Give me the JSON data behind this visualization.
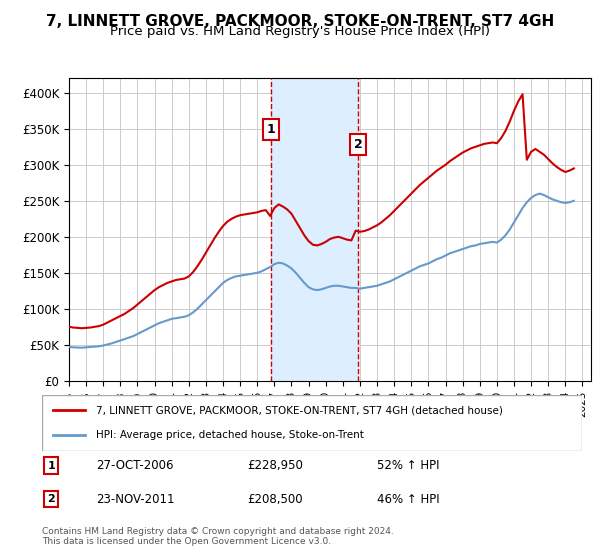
{
  "title": "7, LINNETT GROVE, PACKMOOR, STOKE-ON-TRENT, ST7 4GH",
  "subtitle": "Price paid vs. HM Land Registry's House Price Index (HPI)",
  "title_fontsize": 11,
  "subtitle_fontsize": 9.5,
  "ylabel_ticks": [
    "£0",
    "£50K",
    "£100K",
    "£150K",
    "£200K",
    "£250K",
    "£300K",
    "£350K",
    "£400K"
  ],
  "ytick_values": [
    0,
    50000,
    100000,
    150000,
    200000,
    250000,
    300000,
    350000,
    400000
  ],
  "ylim": [
    0,
    420000
  ],
  "xlim_start": 1995.0,
  "xlim_end": 2025.5,
  "xtick_years": [
    1995,
    1996,
    1997,
    1998,
    1999,
    2000,
    2001,
    2002,
    2003,
    2004,
    2005,
    2006,
    2007,
    2008,
    2009,
    2010,
    2011,
    2012,
    2013,
    2014,
    2015,
    2016,
    2017,
    2018,
    2019,
    2020,
    2021,
    2022,
    2023,
    2024,
    2025
  ],
  "purchase1_x": 2006.82,
  "purchase1_y": 228950,
  "purchase1_label": "1",
  "purchase2_x": 2011.9,
  "purchase2_y": 208500,
  "purchase2_label": "2",
  "shade_x1": 2006.82,
  "shade_x2": 2011.9,
  "red_line_color": "#cc0000",
  "blue_line_color": "#6699cc",
  "shade_color": "#ddeeff",
  "vline_color": "#cc0000",
  "grid_color": "#cccccc",
  "legend1_label": "7, LINNETT GROVE, PACKMOOR, STOKE-ON-TRENT, ST7 4GH (detached house)",
  "legend2_label": "HPI: Average price, detached house, Stoke-on-Trent",
  "transaction1_date": "27-OCT-2006",
  "transaction1_price": "£228,950",
  "transaction1_hpi": "52% ↑ HPI",
  "transaction2_date": "23-NOV-2011",
  "transaction2_price": "£208,500",
  "transaction2_hpi": "46% ↑ HPI",
  "footer": "Contains HM Land Registry data © Crown copyright and database right 2024.\nThis data is licensed under the Open Government Licence v3.0.",
  "hpi_data_x": [
    1995.0,
    1995.25,
    1995.5,
    1995.75,
    1996.0,
    1996.25,
    1996.5,
    1996.75,
    1997.0,
    1997.25,
    1997.5,
    1997.75,
    1998.0,
    1998.25,
    1998.5,
    1998.75,
    1999.0,
    1999.25,
    1999.5,
    1999.75,
    2000.0,
    2000.25,
    2000.5,
    2000.75,
    2001.0,
    2001.25,
    2001.5,
    2001.75,
    2002.0,
    2002.25,
    2002.5,
    2002.75,
    2003.0,
    2003.25,
    2003.5,
    2003.75,
    2004.0,
    2004.25,
    2004.5,
    2004.75,
    2005.0,
    2005.25,
    2005.5,
    2005.75,
    2006.0,
    2006.25,
    2006.5,
    2006.75,
    2007.0,
    2007.25,
    2007.5,
    2007.75,
    2008.0,
    2008.25,
    2008.5,
    2008.75,
    2009.0,
    2009.25,
    2009.5,
    2009.75,
    2010.0,
    2010.25,
    2010.5,
    2010.75,
    2011.0,
    2011.25,
    2011.5,
    2011.75,
    2012.0,
    2012.25,
    2012.5,
    2012.75,
    2013.0,
    2013.25,
    2013.5,
    2013.75,
    2014.0,
    2014.25,
    2014.5,
    2014.75,
    2015.0,
    2015.25,
    2015.5,
    2015.75,
    2016.0,
    2016.25,
    2016.5,
    2016.75,
    2017.0,
    2017.25,
    2017.5,
    2017.75,
    2018.0,
    2018.25,
    2018.5,
    2018.75,
    2019.0,
    2019.25,
    2019.5,
    2019.75,
    2020.0,
    2020.25,
    2020.5,
    2020.75,
    2021.0,
    2021.25,
    2021.5,
    2021.75,
    2022.0,
    2022.25,
    2022.5,
    2022.75,
    2023.0,
    2023.25,
    2023.5,
    2023.75,
    2024.0,
    2024.25,
    2024.5
  ],
  "hpi_data_y": [
    47000,
    46500,
    46200,
    46000,
    46500,
    47000,
    47500,
    48000,
    49000,
    50500,
    52000,
    54000,
    56000,
    58000,
    60000,
    62000,
    65000,
    68000,
    71000,
    74000,
    77000,
    80000,
    82000,
    84000,
    86000,
    87000,
    88000,
    89000,
    91000,
    95000,
    100000,
    106000,
    112000,
    118000,
    124000,
    130000,
    136000,
    140000,
    143000,
    145000,
    146000,
    147000,
    148000,
    149000,
    150000,
    152000,
    155000,
    158000,
    162000,
    164000,
    163000,
    160000,
    156000,
    150000,
    143000,
    136000,
    130000,
    127000,
    126000,
    127000,
    129000,
    131000,
    132000,
    132000,
    131000,
    130000,
    129000,
    129000,
    128000,
    129000,
    130000,
    131000,
    132000,
    134000,
    136000,
    138000,
    141000,
    144000,
    147000,
    150000,
    153000,
    156000,
    159000,
    161000,
    163000,
    166000,
    169000,
    171000,
    174000,
    177000,
    179000,
    181000,
    183000,
    185000,
    187000,
    188000,
    190000,
    191000,
    192000,
    193000,
    192000,
    196000,
    202000,
    210000,
    220000,
    230000,
    240000,
    248000,
    254000,
    258000,
    260000,
    258000,
    255000,
    252000,
    250000,
    248000,
    247000,
    248000,
    250000
  ],
  "red_data_x": [
    1995.0,
    1995.25,
    1995.5,
    1995.75,
    1996.0,
    1996.25,
    1996.5,
    1996.75,
    1997.0,
    1997.25,
    1997.5,
    1997.75,
    1998.0,
    1998.25,
    1998.5,
    1998.75,
    1999.0,
    1999.25,
    1999.5,
    1999.75,
    2000.0,
    2000.25,
    2000.5,
    2000.75,
    2001.0,
    2001.25,
    2001.5,
    2001.75,
    2002.0,
    2002.25,
    2002.5,
    2002.75,
    2003.0,
    2003.25,
    2003.5,
    2003.75,
    2004.0,
    2004.25,
    2004.5,
    2004.75,
    2005.0,
    2005.25,
    2005.5,
    2005.75,
    2006.0,
    2006.25,
    2006.5,
    2006.75,
    2007.0,
    2007.25,
    2007.5,
    2007.75,
    2008.0,
    2008.25,
    2008.5,
    2008.75,
    2009.0,
    2009.25,
    2009.5,
    2009.75,
    2010.0,
    2010.25,
    2010.5,
    2010.75,
    2011.0,
    2011.25,
    2011.5,
    2011.75,
    2012.0,
    2012.25,
    2012.5,
    2012.75,
    2013.0,
    2013.25,
    2013.5,
    2013.75,
    2014.0,
    2014.25,
    2014.5,
    2014.75,
    2015.0,
    2015.25,
    2015.5,
    2015.75,
    2016.0,
    2016.25,
    2016.5,
    2016.75,
    2017.0,
    2017.25,
    2017.5,
    2017.75,
    2018.0,
    2018.25,
    2018.5,
    2018.75,
    2019.0,
    2019.25,
    2019.5,
    2019.75,
    2020.0,
    2020.25,
    2020.5,
    2020.75,
    2021.0,
    2021.25,
    2021.5,
    2021.75,
    2022.0,
    2022.25,
    2022.5,
    2022.75,
    2023.0,
    2023.25,
    2023.5,
    2023.75,
    2024.0,
    2024.25,
    2024.5
  ],
  "red_data_y": [
    75000,
    74000,
    73500,
    73000,
    73500,
    74000,
    75000,
    76000,
    78000,
    81000,
    84000,
    87000,
    90000,
    93000,
    97000,
    101000,
    106000,
    111000,
    116000,
    121000,
    126000,
    130000,
    133000,
    136000,
    138000,
    140000,
    141000,
    142000,
    145000,
    151000,
    159000,
    168000,
    178000,
    188000,
    198000,
    207000,
    215000,
    221000,
    225000,
    228000,
    230000,
    231000,
    232000,
    233000,
    234000,
    236000,
    237000,
    228950,
    240000,
    245000,
    242000,
    238000,
    232000,
    222000,
    212000,
    202000,
    194000,
    189000,
    188000,
    190000,
    193000,
    197000,
    199000,
    200000,
    198000,
    196000,
    195000,
    208500,
    207000,
    208000,
    210000,
    213000,
    216000,
    220000,
    225000,
    230000,
    236000,
    242000,
    248000,
    254000,
    260000,
    266000,
    272000,
    277000,
    282000,
    287000,
    292000,
    296000,
    300000,
    305000,
    309000,
    313000,
    317000,
    320000,
    323000,
    325000,
    327000,
    329000,
    330000,
    331000,
    330000,
    337000,
    347000,
    360000,
    375000,
    388000,
    398000,
    307000,
    318000,
    322000,
    318000,
    314000,
    308000,
    302000,
    297000,
    293000,
    290000,
    292000,
    295000
  ]
}
